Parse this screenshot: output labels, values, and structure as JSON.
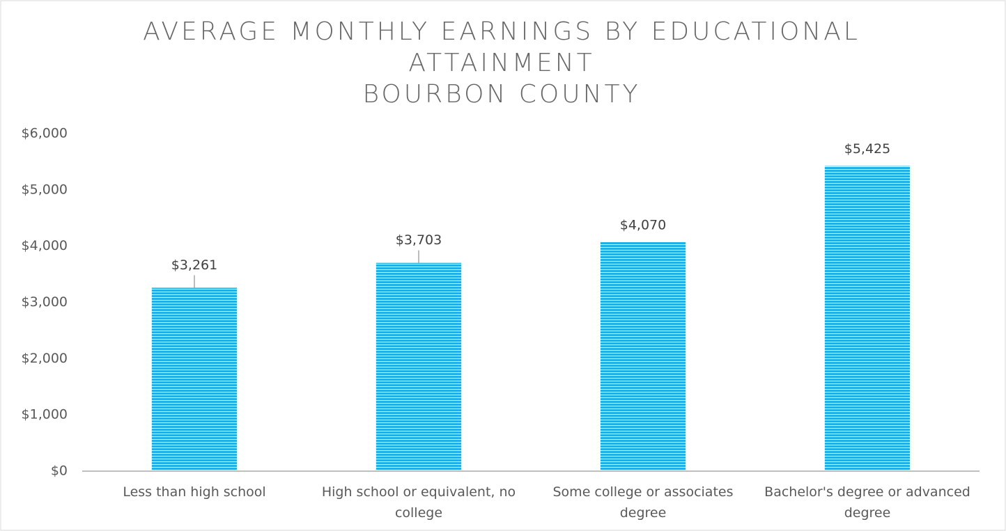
{
  "chart_data": {
    "type": "bar",
    "title": [
      "AVERAGE MONTHLY EARNINGS BY EDUCATIONAL",
      "ATTAINMENT",
      "BOURBON COUNTY"
    ],
    "categories": [
      "Less than high school",
      "High school or equivalent, no college",
      "Some college or associates degree",
      "Bachelor's degree or advanced degree"
    ],
    "values": [
      3261,
      3703,
      4070,
      5425
    ],
    "value_labels": [
      "$3,261",
      "$3,703",
      "$4,070",
      "$5,425"
    ],
    "color": "#1fb0e6",
    "ylim": [
      0,
      6000
    ],
    "yticks": [
      {
        "value": 0,
        "label": "$0"
      },
      {
        "value": 1000,
        "label": "$1,000"
      },
      {
        "value": 2000,
        "label": "$2,000"
      },
      {
        "value": 3000,
        "label": "$3,000"
      },
      {
        "value": 4000,
        "label": "$4,000"
      },
      {
        "value": 5000,
        "label": "$5,000"
      },
      {
        "value": 6000,
        "label": "$6,000"
      }
    ],
    "grid": false
  }
}
